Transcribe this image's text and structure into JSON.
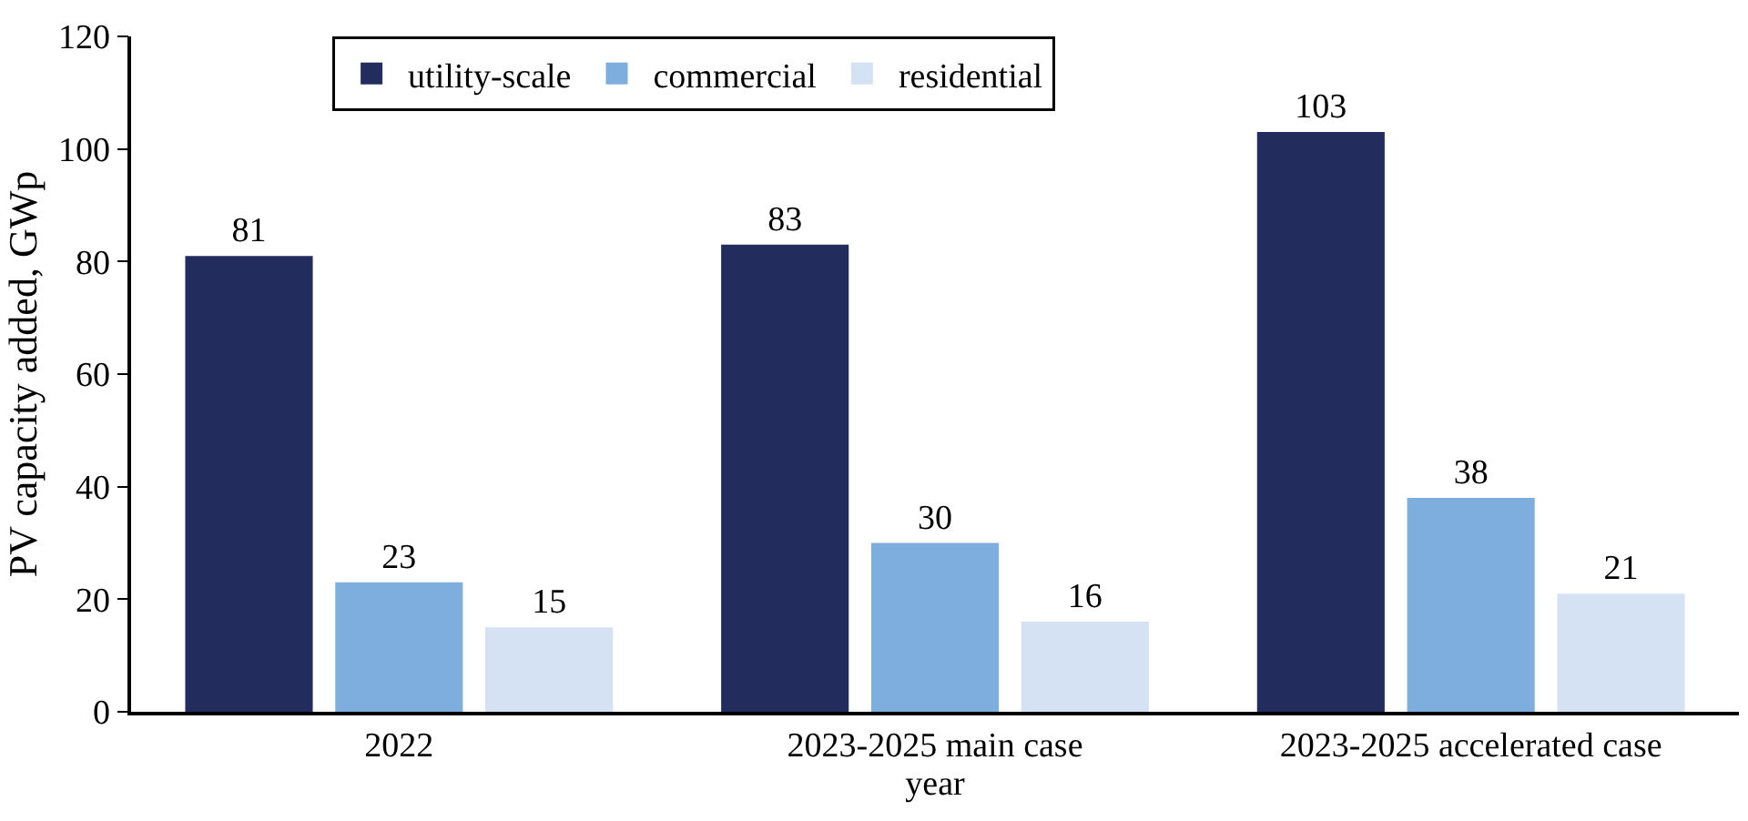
{
  "chart_data": {
    "type": "bar",
    "xlabel": "year",
    "ylabel": "PV capacity added, GWp",
    "categories": [
      "2022",
      "2023-2025 main case",
      "2023-2025 accelerated case"
    ],
    "series": [
      {
        "name": "utility-scale",
        "color": "#222d5e",
        "values": [
          81,
          83,
          103
        ]
      },
      {
        "name": "commercial",
        "color": "#7eaede",
        "values": [
          23,
          30,
          38
        ]
      },
      {
        "name": "residential",
        "color": "#d4e2f4",
        "values": [
          15,
          16,
          21
        ]
      }
    ],
    "ylim": [
      0,
      120
    ],
    "yticks": [
      0,
      20,
      40,
      60,
      80,
      100,
      120
    ],
    "grid": false,
    "legend": "top",
    "data_labels": true
  }
}
